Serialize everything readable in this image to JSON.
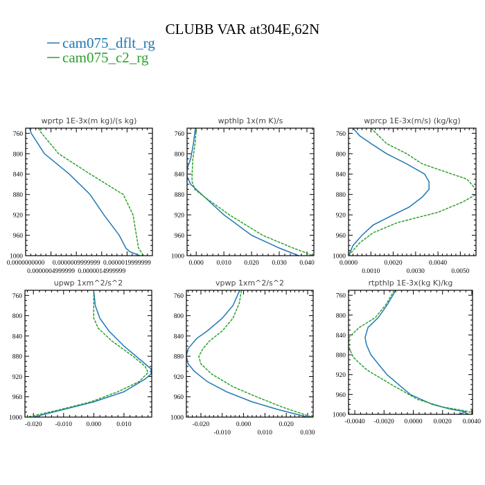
{
  "title": "CLUBB VAR at304E,62N",
  "legend": [
    {
      "label": "cam075_dflt_rg",
      "color": "#1f77b4",
      "dash": false
    },
    {
      "label": "cam075_c2_rg",
      "color": "#2ca02c",
      "dash": true
    }
  ],
  "chart_data": [
    {
      "type": "line",
      "title": "wprtp  1E-3x(m kg)/(s kg)",
      "ylim": [
        750,
        1000
      ],
      "yticks": [
        760,
        800,
        840,
        880,
        920,
        960,
        1000
      ],
      "xlim": [
        0,
        1
      ],
      "xticks": [
        0,
        0.2,
        0.4,
        0.6,
        0.8
      ],
      "xticklabels": [
        "0.0000000000",
        "0.0000004999999",
        "0.0000009999999",
        "0.0000014999999",
        "0.0000019999999"
      ],
      "series": [
        {
          "name": "cam075_dflt_rg",
          "p": [
            750,
            760,
            800,
            840,
            880,
            920,
            960,
            985,
            992,
            1000
          ],
          "x": [
            0.03,
            0.044,
            0.148,
            0.344,
            0.508,
            0.617,
            0.738,
            0.79,
            0.82,
            0.9
          ]
        },
        {
          "name": "cam075_c2_rg",
          "p": [
            750,
            760,
            800,
            840,
            880,
            920,
            960,
            985,
            1000
          ],
          "x": [
            0.1,
            0.126,
            0.26,
            0.508,
            0.77,
            0.847,
            0.874,
            0.89,
            0.93
          ]
        }
      ]
    },
    {
      "type": "line",
      "title": "wpthlp  1x(m K)/s",
      "ylim": [
        750,
        1000
      ],
      "yticks": [
        760,
        800,
        840,
        880,
        920,
        960,
        1000
      ],
      "xlim": [
        -0.0033,
        0.0425
      ],
      "xticks": [
        0,
        0.01,
        0.02,
        0.03,
        0.04
      ],
      "xticklabels": [
        "0.000",
        "0.010",
        "0.020",
        "0.030",
        "0.040"
      ],
      "series": [
        {
          "name": "cam075_dflt_rg",
          "p": [
            750,
            780,
            810,
            830,
            845,
            860,
            875,
            890,
            920,
            960,
            985,
            1000
          ],
          "x": [
            -0.0003,
            -0.001,
            -0.002,
            -0.0033,
            -0.0033,
            -0.002,
            0.001,
            0.004,
            0.01,
            0.02,
            0.03,
            0.037
          ]
        },
        {
          "name": "cam075_c2_rg",
          "p": [
            750,
            780,
            810,
            840,
            855,
            870,
            885,
            920,
            960,
            985,
            993,
            1000
          ],
          "x": [
            0.0,
            -0.0004,
            -0.0012,
            -0.0015,
            -0.0015,
            -0.0005,
            0.003,
            0.012,
            0.024,
            0.035,
            0.039,
            0.042
          ]
        }
      ]
    },
    {
      "type": "line",
      "title": "wprcp  1E-3x(m/s) (kg/kg)",
      "ylim": [
        750,
        1000
      ],
      "yticks": [
        760,
        800,
        840,
        880,
        920,
        960,
        1000
      ],
      "xlim": [
        0,
        0.0057
      ],
      "xticks": [
        0,
        0.001,
        0.002,
        0.003,
        0.004,
        0.005
      ],
      "xticklabels": [
        "0.0000",
        "0.0010",
        "0.0020",
        "0.0030",
        "0.0040",
        "0.0050"
      ],
      "series": [
        {
          "name": "cam075_dflt_rg",
          "p": [
            750,
            765,
            780,
            800,
            820,
            840,
            855,
            870,
            885,
            905,
            920,
            940,
            960,
            980,
            1000
          ],
          "x": [
            0.0002,
            0.0005,
            0.001,
            0.0017,
            0.0026,
            0.0034,
            0.0036,
            0.0036,
            0.0033,
            0.0027,
            0.002,
            0.0011,
            0.0006,
            0.0002,
            0.0
          ]
        },
        {
          "name": "cam075_c2_rg",
          "p": [
            750,
            780,
            800,
            820,
            835,
            850,
            870,
            880,
            895,
            915,
            935,
            955,
            975,
            1000
          ],
          "x": [
            0.001,
            0.0017,
            0.0026,
            0.0033,
            0.0043,
            0.0053,
            0.0057,
            0.0057,
            0.0051,
            0.004,
            0.0022,
            0.0011,
            0.0005,
            0.0
          ]
        }
      ]
    },
    {
      "type": "line",
      "title": "upwp  1xm^2/s^2",
      "ylim": [
        750,
        1000
      ],
      "yticks": [
        760,
        800,
        840,
        880,
        920,
        960,
        1000
      ],
      "xlim": [
        -0.0228,
        0.0192
      ],
      "xticks": [
        -0.02,
        -0.01,
        0,
        0.01
      ],
      "xticklabels": [
        "-0.020",
        "-0.010",
        "0.000",
        "0.010"
      ],
      "series": [
        {
          "name": "cam075_dflt_rg",
          "p": [
            750,
            780,
            805,
            830,
            860,
            890,
            905,
            915,
            925,
            950,
            970,
            985,
            1000
          ],
          "x": [
            0.0,
            0.0005,
            0.002,
            0.005,
            0.01,
            0.016,
            0.019,
            0.019,
            0.017,
            0.01,
            0.0,
            -0.01,
            -0.02
          ]
        },
        {
          "name": "cam075_c2_rg",
          "p": [
            750,
            805,
            825,
            850,
            880,
            900,
            912,
            930,
            950,
            970,
            985,
            1000
          ],
          "x": [
            0.0,
            0.0,
            0.0015,
            0.006,
            0.013,
            0.017,
            0.018,
            0.015,
            0.008,
            -0.001,
            -0.011,
            -0.022
          ]
        }
      ]
    },
    {
      "type": "line",
      "title": "vpwp  1xm^2/s^2",
      "ylim": [
        750,
        1000
      ],
      "yticks": [
        760,
        800,
        840,
        880,
        920,
        960,
        1000
      ],
      "xlim": [
        -0.0268,
        0.0326
      ],
      "xticks": [
        -0.02,
        -0.01,
        0,
        0.01,
        0.02,
        0.03
      ],
      "xticklabels": [
        "-0.020",
        "-0.010",
        "0.000",
        "0.010",
        "0.020",
        "0.030"
      ],
      "series": [
        {
          "name": "cam075_dflt_rg",
          "p": [
            750,
            780,
            805,
            830,
            845,
            865,
            880,
            895,
            910,
            930,
            950,
            970,
            985,
            1000
          ],
          "x": [
            -0.0018,
            -0.005,
            -0.01,
            -0.017,
            -0.022,
            -0.026,
            -0.0268,
            -0.026,
            -0.023,
            -0.017,
            -0.008,
            0.004,
            0.016,
            0.03
          ]
        },
        {
          "name": "cam075_c2_rg",
          "p": [
            750,
            775,
            805,
            830,
            850,
            865,
            880,
            895,
            915,
            940,
            960,
            980,
            1000
          ],
          "x": [
            -0.001,
            -0.002,
            -0.005,
            -0.01,
            -0.016,
            -0.019,
            -0.021,
            -0.02,
            -0.015,
            -0.005,
            0.006,
            0.018,
            0.032
          ]
        }
      ]
    },
    {
      "type": "line",
      "title": "rtpthlp  1E-3x(kg K)/kg",
      "ylim": [
        750,
        1000
      ],
      "yticks": [
        760,
        800,
        840,
        880,
        920,
        960,
        1000
      ],
      "xlim": [
        -0.00443,
        0.00405
      ],
      "xticks": [
        -0.004,
        -0.002,
        0,
        0.002,
        0.004
      ],
      "xticklabels": [
        "-0.0040",
        "-0.0020",
        "0.0000",
        "0.0020",
        "0.0040"
      ],
      "series": [
        {
          "name": "cam075_dflt_rg",
          "p": [
            750,
            780,
            805,
            825,
            845,
            860,
            880,
            920,
            960,
            980,
            990,
            995,
            1000
          ],
          "x": [
            -0.0012,
            -0.0018,
            -0.0024,
            -0.0031,
            -0.0033,
            -0.0032,
            -0.0029,
            -0.0018,
            -0.0002,
            0.0013,
            0.0026,
            0.0036,
            0.0031
          ]
        },
        {
          "name": "cam075_c2_rg",
          "p": [
            750,
            780,
            805,
            825,
            845,
            865,
            885,
            910,
            940,
            970,
            985,
            995,
            1000
          ],
          "x": [
            -0.0013,
            -0.0019,
            -0.0026,
            -0.0037,
            -0.0044,
            -0.0044,
            -0.0041,
            -0.0032,
            -0.0015,
            0.0003,
            0.002,
            0.0039,
            0.0036
          ]
        }
      ]
    }
  ]
}
